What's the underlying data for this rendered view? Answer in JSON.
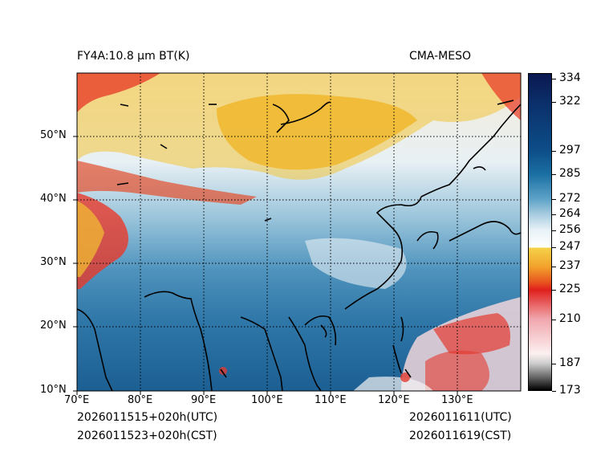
{
  "title_left": "FY4A:10.8 µm BT(K)",
  "title_right": "CMA-MESO",
  "footer": {
    "init_utc": "2026011515+020h(UTC)",
    "init_cst": "2026011523+020h(CST)",
    "valid_utc": "2026011611(UTC)",
    "valid_cst": "2026011619(CST)"
  },
  "axes": {
    "lon_ticks": [
      "70°E",
      "80°E",
      "90°E",
      "100°E",
      "110°E",
      "120°E",
      "130°E"
    ],
    "lat_ticks": [
      "10°N",
      "20°N",
      "30°N",
      "40°N",
      "50°N"
    ],
    "lon_range": [
      70,
      140
    ],
    "lat_range": [
      10,
      60
    ]
  },
  "colorbar": {
    "min": 173,
    "max": 337,
    "tick_labels": [
      "173",
      "187",
      "210",
      "225",
      "237",
      "247",
      "256",
      "264",
      "272",
      "285",
      "297",
      "322",
      "334"
    ]
  }
}
